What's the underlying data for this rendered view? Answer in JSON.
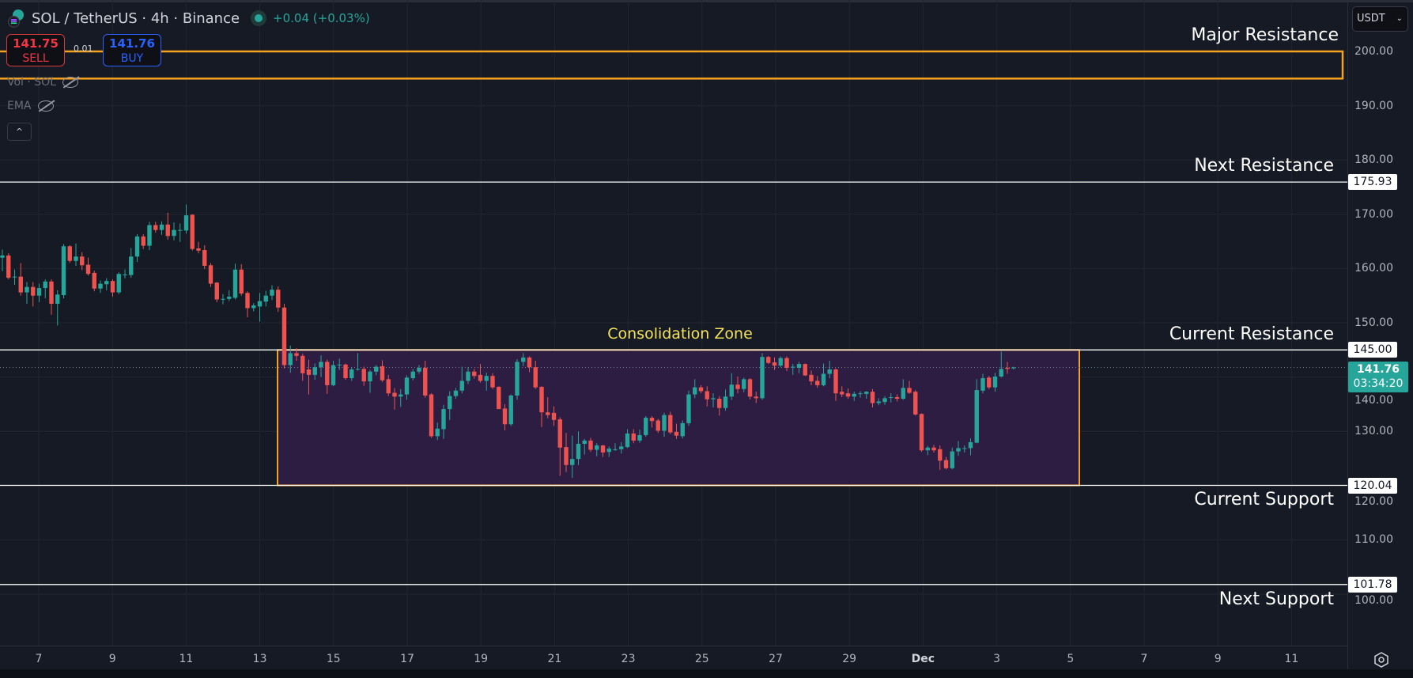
{
  "header": {
    "symbol_title": "SOL / TetherUS · 4h · Binance",
    "change": "+0.04 (+0.03%)",
    "market_status": "open"
  },
  "trade": {
    "sell_price": "141.75",
    "sell_label": "SELL",
    "spread": "0.01",
    "buy_price": "141.76",
    "buy_label": "BUY"
  },
  "indicators": [
    {
      "label": "Vol · SOL",
      "icon": "eye-off-icon"
    },
    {
      "label": "EMA",
      "icon": "eye-off-icon"
    }
  ],
  "collapse_icon": "^",
  "annotations": {
    "major_resistance": "Major Resistance",
    "next_resistance": "Next Resistance",
    "current_resistance": "Current Resistance",
    "current_support": "Current Support",
    "next_support": "Next Support",
    "consolidation_zone": "Consolidation Zone"
  },
  "price_axis": {
    "currency": "USDT",
    "chevron": "⌄",
    "ticks": [
      "200.00",
      "190.00",
      "180.00",
      "170.00",
      "160.00",
      "150.00",
      "140.00",
      "130.00",
      "120.00",
      "110.00",
      "100.00"
    ],
    "levels": [
      {
        "value": 175.93,
        "label": "175.93"
      },
      {
        "value": 145.0,
        "label": "145.00"
      },
      {
        "value": 120.04,
        "label": "120.04"
      },
      {
        "value": 101.78,
        "label": "101.78"
      }
    ],
    "current_price": "141.76",
    "countdown": "03:34:20"
  },
  "time_axis": {
    "ticks": [
      "7",
      "9",
      "11",
      "13",
      "15",
      "17",
      "19",
      "21",
      "23",
      "25",
      "27",
      "29",
      "Dec",
      "3",
      "5",
      "7",
      "9",
      "11"
    ]
  },
  "colors": {
    "up": "#26a69a",
    "down": "#ef5350",
    "zone_border": "#f7a21b",
    "zone_fill": "#2d1d43",
    "level_line": "#ffffff",
    "label_yellow": "#f2e25c"
  },
  "chart_data": {
    "type": "candlestick",
    "symbol": "SOL / TetherUS",
    "interval": "4h",
    "ylim": [
      95,
      210
    ],
    "grid": true,
    "zones": [
      {
        "name": "Major Resistance",
        "low": 195,
        "high": 200,
        "fill": false
      },
      {
        "name": "Consolidation Zone",
        "low": 120.04,
        "high": 145.0,
        "fill": true
      }
    ],
    "horizontal_levels": [
      175.93,
      145.0,
      120.04,
      101.78
    ],
    "last_price": 141.76,
    "candles_ohlc": [
      [
        162.0,
        163.5,
        159.5,
        162.4
      ],
      [
        162.4,
        162.8,
        158.0,
        158.3
      ],
      [
        158.4,
        159.8,
        157.0,
        158.5
      ],
      [
        158.5,
        161.0,
        155.0,
        155.6
      ],
      [
        155.6,
        157.5,
        153.5,
        156.6
      ],
      [
        156.6,
        157.5,
        153.0,
        155.0
      ],
      [
        155.0,
        157.2,
        153.8,
        156.4
      ],
      [
        156.4,
        158.0,
        154.5,
        157.6
      ],
      [
        157.6,
        158.0,
        151.5,
        153.5
      ],
      [
        153.5,
        156.0,
        149.5,
        155.2
      ],
      [
        155.1,
        164.5,
        154.5,
        164.1
      ],
      [
        164.1,
        164.3,
        161.0,
        161.4
      ],
      [
        161.4,
        164.6,
        160.5,
        162.2
      ],
      [
        162.2,
        163.0,
        159.7,
        160.6
      ],
      [
        160.7,
        162.0,
        158.7,
        159.0
      ],
      [
        159.2,
        159.6,
        155.8,
        156.3
      ],
      [
        156.3,
        157.8,
        155.5,
        157.2
      ],
      [
        157.1,
        158.2,
        156.0,
        157.7
      ],
      [
        157.7,
        158.0,
        154.8,
        155.6
      ],
      [
        155.6,
        159.3,
        155.3,
        159.0
      ],
      [
        158.9,
        159.8,
        158.2,
        158.9
      ],
      [
        158.8,
        163.8,
        158.3,
        162.2
      ],
      [
        162.2,
        166.3,
        161.2,
        165.9
      ],
      [
        165.9,
        166.3,
        163.6,
        164.2
      ],
      [
        164.2,
        168.6,
        163.4,
        168.0
      ],
      [
        168.0,
        168.6,
        166.6,
        167.1
      ],
      [
        167.1,
        168.7,
        166.2,
        168.1
      ],
      [
        168.1,
        170.3,
        165.3,
        166.0
      ],
      [
        166.0,
        168.5,
        165.2,
        167.1
      ],
      [
        167.1,
        168.3,
        164.9,
        167.1
      ],
      [
        167.0,
        171.8,
        166.4,
        169.8
      ],
      [
        169.9,
        170.0,
        163.3,
        163.6
      ],
      [
        163.7,
        164.9,
        162.8,
        163.3
      ],
      [
        163.4,
        164.3,
        159.9,
        160.5
      ],
      [
        160.6,
        161.0,
        156.6,
        157.2
      ],
      [
        157.4,
        157.5,
        153.8,
        154.3
      ],
      [
        154.4,
        155.3,
        153.4,
        154.4
      ],
      [
        154.4,
        156.0,
        154.0,
        154.8
      ],
      [
        154.6,
        160.9,
        154.3,
        159.8
      ],
      [
        159.8,
        160.8,
        155.0,
        155.4
      ],
      [
        155.5,
        155.8,
        151.0,
        152.7
      ],
      [
        152.7,
        153.6,
        152.1,
        153.2
      ],
      [
        153.0,
        155.5,
        150.2,
        154.0
      ],
      [
        153.9,
        155.9,
        153.0,
        155.0
      ],
      [
        155.0,
        156.9,
        154.2,
        156.1
      ],
      [
        156.1,
        156.7,
        152.0,
        152.8
      ],
      [
        152.8,
        153.5,
        141.6,
        142.2
      ],
      [
        142.2,
        145.8,
        140.8,
        144.4
      ],
      [
        144.4,
        145.3,
        143.0,
        143.9
      ],
      [
        143.9,
        144.3,
        139.3,
        140.7
      ],
      [
        141.4,
        143.2,
        136.8,
        140.4
      ],
      [
        140.4,
        142.5,
        139.5,
        141.8
      ],
      [
        141.8,
        144.0,
        140.0,
        142.8
      ],
      [
        142.8,
        143.2,
        136.9,
        138.5
      ],
      [
        138.5,
        143.0,
        138.3,
        142.2
      ],
      [
        142.2,
        143.4,
        141.3,
        142.3
      ],
      [
        142.3,
        142.5,
        139.5,
        139.8
      ],
      [
        139.8,
        141.8,
        139.3,
        141.4
      ],
      [
        141.4,
        144.4,
        141.2,
        141.5
      ],
      [
        141.5,
        141.9,
        138.4,
        139.2
      ],
      [
        139.2,
        141.3,
        137.1,
        141.0
      ],
      [
        141.0,
        142.2,
        140.3,
        141.9
      ],
      [
        142.0,
        143.1,
        139.1,
        139.4
      ],
      [
        139.6,
        140.4,
        136.5,
        137.0
      ],
      [
        137.1,
        138.0,
        134.0,
        136.4
      ],
      [
        136.4,
        137.8,
        134.5,
        136.8
      ],
      [
        136.8,
        140.3,
        135.8,
        139.9
      ],
      [
        139.8,
        141.5,
        139.4,
        141.0
      ],
      [
        141.0,
        142.2,
        140.6,
        141.7
      ],
      [
        141.7,
        143.0,
        136.2,
        136.6
      ],
      [
        136.8,
        137.0,
        128.8,
        129.1
      ],
      [
        129.1,
        131.6,
        128.4,
        130.5
      ],
      [
        130.4,
        134.9,
        128.6,
        134.1
      ],
      [
        134.1,
        137.4,
        132.1,
        136.5
      ],
      [
        136.5,
        138.0,
        136.0,
        137.5
      ],
      [
        137.5,
        141.9,
        137.0,
        139.3
      ],
      [
        139.3,
        141.8,
        138.7,
        141.0
      ],
      [
        141.0,
        141.5,
        139.7,
        140.2
      ],
      [
        140.4,
        142.4,
        139.0,
        139.3
      ],
      [
        139.3,
        140.8,
        137.5,
        140.2
      ],
      [
        140.2,
        140.7,
        137.8,
        138.1
      ],
      [
        138.2,
        138.3,
        134.1,
        134.1
      ],
      [
        134.2,
        135.0,
        130.2,
        131.3
      ],
      [
        131.3,
        136.8,
        131.0,
        136.6
      ],
      [
        136.6,
        143.3,
        135.8,
        142.8
      ],
      [
        142.8,
        144.4,
        142.0,
        143.6
      ],
      [
        143.6,
        143.8,
        140.9,
        141.8
      ],
      [
        141.8,
        143.0,
        137.8,
        138.1
      ],
      [
        138.2,
        138.3,
        130.8,
        133.5
      ],
      [
        133.5,
        136.3,
        132.4,
        133.0
      ],
      [
        133.4,
        134.6,
        131.0,
        132.1
      ],
      [
        132.2,
        132.6,
        121.8,
        127.0
      ],
      [
        127.1,
        129.7,
        122.5,
        123.8
      ],
      [
        123.8,
        129.2,
        121.4,
        124.9
      ],
      [
        124.9,
        130.0,
        123.8,
        127.7
      ],
      [
        127.7,
        128.6,
        125.7,
        128.3
      ],
      [
        128.3,
        128.8,
        126.2,
        126.6
      ],
      [
        126.6,
        127.8,
        125.4,
        127.4
      ],
      [
        127.4,
        127.5,
        125.3,
        126.1
      ],
      [
        126.2,
        127.2,
        125.3,
        126.8
      ],
      [
        126.7,
        127.8,
        126.4,
        126.7
      ],
      [
        126.7,
        128.0,
        125.9,
        127.2
      ],
      [
        127.1,
        130.4,
        126.9,
        129.6
      ],
      [
        129.6,
        130.4,
        127.8,
        128.3
      ],
      [
        128.3,
        130.3,
        127.9,
        129.3
      ],
      [
        129.3,
        132.8,
        129.0,
        132.5
      ],
      [
        132.5,
        132.8,
        130.7,
        131.9
      ],
      [
        132.0,
        132.3,
        129.7,
        130.1
      ],
      [
        130.1,
        133.4,
        129.0,
        133.0
      ],
      [
        133.0,
        133.6,
        129.5,
        129.8
      ],
      [
        129.9,
        131.4,
        128.6,
        129.2
      ],
      [
        129.1,
        132.0,
        128.7,
        131.5
      ],
      [
        131.5,
        137.5,
        131.0,
        136.8
      ],
      [
        136.8,
        139.6,
        136.1,
        138.1
      ],
      [
        138.1,
        138.5,
        137.0,
        137.4
      ],
      [
        137.4,
        138.3,
        134.6,
        135.9
      ],
      [
        135.9,
        137.0,
        134.4,
        136.1
      ],
      [
        136.0,
        136.5,
        132.9,
        134.3
      ],
      [
        134.3,
        137.7,
        133.8,
        136.4
      ],
      [
        136.4,
        140.7,
        135.8,
        138.6
      ],
      [
        138.6,
        140.1,
        137.0,
        137.8
      ],
      [
        137.8,
        139.9,
        137.2,
        139.6
      ],
      [
        139.6,
        139.8,
        135.9,
        136.4
      ],
      [
        136.4,
        137.3,
        135.2,
        136.1
      ],
      [
        136.1,
        144.4,
        135.8,
        143.7
      ],
      [
        143.7,
        143.9,
        142.4,
        142.6
      ],
      [
        142.7,
        143.6,
        141.3,
        142.1
      ],
      [
        142.1,
        143.8,
        141.8,
        143.5
      ],
      [
        143.5,
        143.8,
        141.1,
        141.7
      ],
      [
        141.9,
        142.4,
        140.4,
        141.9
      ],
      [
        141.7,
        142.8,
        140.7,
        142.4
      ],
      [
        142.4,
        142.5,
        140.2,
        140.3
      ],
      [
        140.4,
        141.2,
        138.5,
        139.2
      ],
      [
        139.3,
        140.2,
        138.0,
        138.5
      ],
      [
        138.5,
        142.5,
        138.3,
        140.6
      ],
      [
        140.6,
        143.0,
        139.8,
        141.4
      ],
      [
        141.4,
        141.6,
        135.6,
        137.0
      ],
      [
        137.3,
        138.3,
        136.3,
        136.8
      ],
      [
        137.0,
        137.9,
        136.0,
        136.4
      ],
      [
        136.4,
        137.3,
        135.6,
        136.9
      ],
      [
        137.0,
        137.4,
        136.2,
        137.0
      ],
      [
        136.9,
        137.4,
        136.0,
        137.3
      ],
      [
        137.3,
        137.8,
        134.4,
        135.2
      ],
      [
        135.2,
        136.1,
        134.8,
        135.5
      ],
      [
        135.4,
        136.5,
        134.9,
        136.1
      ],
      [
        136.3,
        137.0,
        135.3,
        136.3
      ],
      [
        136.3,
        136.8,
        135.5,
        136.0
      ],
      [
        136.0,
        139.6,
        135.8,
        138.0
      ],
      [
        138.0,
        139.3,
        136.9,
        137.1
      ],
      [
        137.3,
        137.6,
        132.9,
        133.1
      ],
      [
        133.2,
        133.3,
        126.2,
        126.5
      ],
      [
        126.5,
        127.3,
        125.6,
        127.0
      ],
      [
        127.0,
        127.5,
        126.1,
        126.5
      ],
      [
        126.7,
        127.4,
        122.9,
        124.6
      ],
      [
        124.7,
        125.3,
        123.0,
        123.2
      ],
      [
        123.2,
        127.0,
        123.0,
        126.3
      ],
      [
        126.3,
        128.2,
        125.5,
        126.9
      ],
      [
        126.9,
        127.4,
        126.1,
        126.9
      ],
      [
        126.9,
        128.7,
        125.6,
        128.0
      ],
      [
        127.9,
        139.6,
        127.8,
        137.6
      ],
      [
        137.5,
        140.6,
        137.0,
        139.8
      ],
      [
        139.9,
        140.2,
        137.8,
        138.1
      ],
      [
        138.1,
        140.8,
        137.3,
        140.1
      ],
      [
        140.1,
        144.7,
        139.9,
        141.5
      ],
      [
        141.7,
        142.8,
        140.6,
        141.5
      ],
      [
        141.6,
        141.9,
        141.4,
        141.76
      ]
    ]
  }
}
